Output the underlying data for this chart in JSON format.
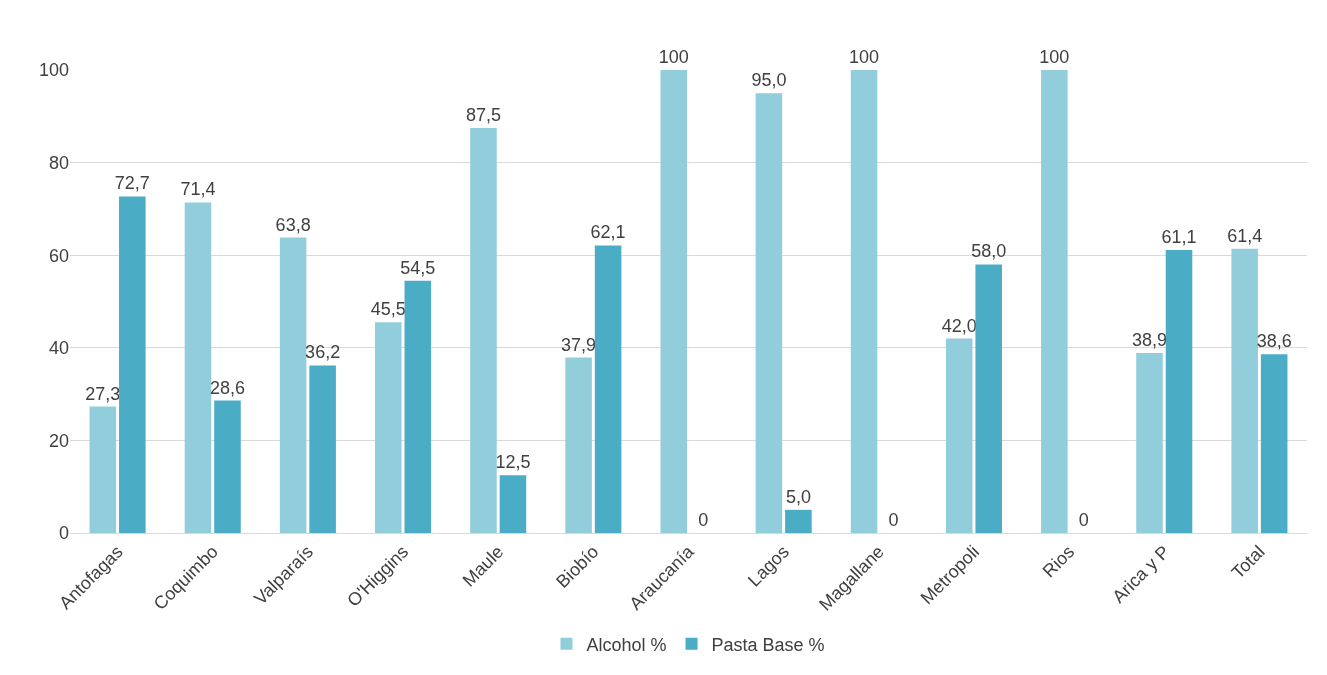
{
  "chart_data": {
    "type": "bar",
    "categories": [
      "Antofagas",
      "Coquimbo",
      "Valparaís",
      "O'Higgins",
      "Maule",
      "Biobío",
      "Araucanía",
      "Lagos",
      "Magallane",
      "Metropoli",
      "Rios",
      "Arica y P",
      "Total"
    ],
    "series": [
      {
        "name": "Alcohol %",
        "color": "#92cddc",
        "values": [
          27.3,
          71.4,
          63.8,
          45.5,
          87.5,
          37.9,
          100,
          95.0,
          100,
          42.0,
          100,
          38.9,
          61.4
        ],
        "value_labels": [
          "27,3",
          "71,4",
          "63,8",
          "45,5",
          "87,5",
          "37,9",
          "100",
          "95,0",
          "100",
          "42,0",
          "100",
          "38,9",
          "61,4"
        ]
      },
      {
        "name": "Pasta Base %",
        "color": "#4bacc6",
        "values": [
          72.7,
          28.6,
          36.2,
          54.5,
          12.5,
          62.1,
          0,
          5.0,
          0,
          58.0,
          0,
          61.1,
          38.6
        ],
        "value_labels": [
          "72,7",
          "28,6",
          "36,2",
          "54,5",
          "12,5",
          "62,1",
          "0",
          "5,0",
          "0",
          "58,0",
          "0",
          "61,1",
          "38,6"
        ]
      }
    ],
    "ylim": [
      0,
      100
    ],
    "yticks": [
      0,
      20,
      40,
      60,
      80,
      100
    ],
    "grid": "y",
    "legend": "bottom"
  }
}
